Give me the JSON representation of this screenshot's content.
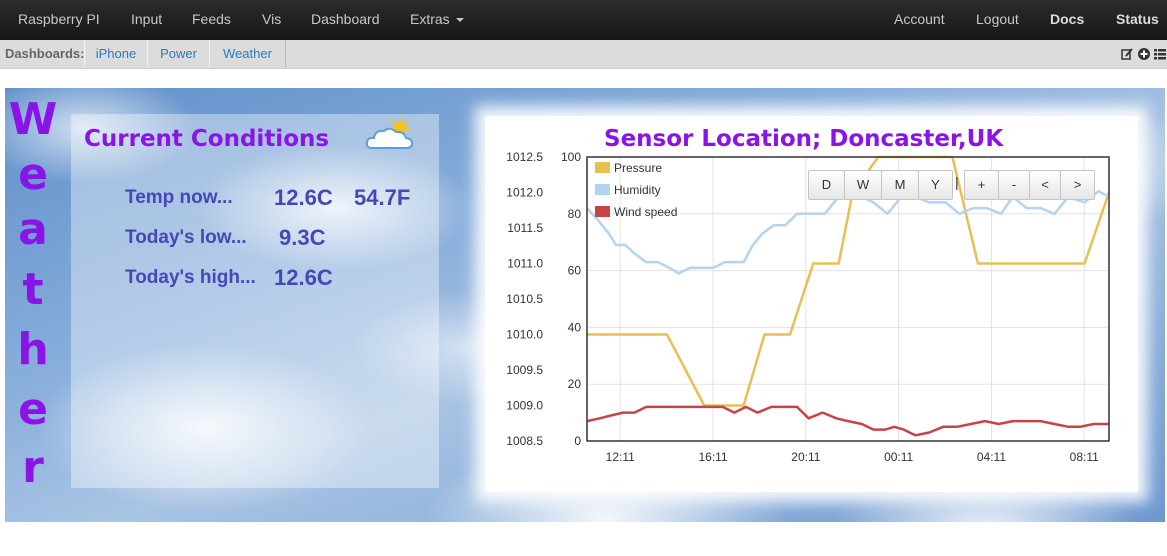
{
  "navbar": {
    "brand": "Raspberry PI",
    "left_items": [
      "Input",
      "Feeds",
      "Vis",
      "Dashboard",
      "Extras"
    ],
    "right_items": [
      "Account",
      "Logout",
      "Docs",
      "Status"
    ]
  },
  "dashboards": {
    "label": "Dashboards:",
    "tabs": [
      "iPhone",
      "Power",
      "Weather"
    ]
  },
  "weather_word": [
    "W",
    "e",
    "a",
    "t",
    "h",
    "e",
    "r"
  ],
  "current_conditions": {
    "title": "Current Conditions",
    "icon": "partly-cloudy-icon",
    "rows": [
      {
        "label": "Temp now...",
        "values": [
          "12.6C",
          "54.7F"
        ]
      },
      {
        "label": "Today's low...",
        "values": [
          "9.3C"
        ]
      },
      {
        "label": "Today's high...",
        "values": [
          "12.6C"
        ]
      }
    ]
  },
  "sensor": {
    "title": "Sensor Location; Doncaster,UK",
    "zoom_buttons": [
      "D",
      "W",
      "M",
      "Y",
      "+",
      "-",
      "<",
      ">"
    ],
    "separator": "|"
  },
  "colors": {
    "accent_purple": "#8a14e8",
    "text_blue": "#4747b8",
    "pressure": "#e8bf52",
    "humidity": "#b3d4ee",
    "wind": "#c84444"
  },
  "chart_data": {
    "type": "line",
    "x_ticks": [
      "12:11",
      "16:11",
      "20:11",
      "00:11",
      "04:11",
      "08:11"
    ],
    "x_range_hours": [
      10.75,
      33.25
    ],
    "left_axis": {
      "ticks": [
        "1012.5",
        "1012.0",
        "1011.5",
        "1011.0",
        "1010.5",
        "1010.0",
        "1009.5",
        "1009.0",
        "1008.5"
      ],
      "range": [
        1008.5,
        1012.5
      ]
    },
    "right_axis": {
      "ticks": [
        "100",
        "80",
        "60",
        "40",
        "20",
        "0"
      ],
      "range": [
        0,
        100
      ]
    },
    "grid": true,
    "legend_placement": "top-left",
    "series": [
      {
        "name": "Pressure",
        "axis": "left",
        "x": [
          10.75,
          12.5,
          13.4,
          14.2,
          15.8,
          16.3,
          17.0,
          17.5,
          18.4,
          19.5,
          20.5,
          21.1,
          21.6,
          22.2,
          23.3,
          24.2,
          25.4,
          26.5,
          27.6,
          28.5,
          29.7,
          30.9,
          32.2,
          33.25
        ],
        "values": [
          1010.0,
          1010.0,
          1010.0,
          1010.0,
          1009.0,
          1009.0,
          1009.0,
          1009.0,
          1010.0,
          1010.0,
          1011.0,
          1011.0,
          1011.0,
          1012.0,
          1012.5,
          1012.5,
          1012.5,
          1012.5,
          1011.0,
          1011.0,
          1011.0,
          1011.0,
          1011.0,
          1012.0
        ]
      },
      {
        "name": "Humidity",
        "axis": "right",
        "x": [
          10.75,
          11.2,
          11.7,
          12.0,
          12.4,
          12.8,
          13.3,
          13.8,
          14.3,
          14.7,
          15.2,
          15.7,
          16.2,
          16.7,
          17.1,
          17.5,
          17.9,
          18.3,
          18.8,
          19.3,
          19.8,
          20.4,
          21.0,
          21.6,
          22.1,
          22.6,
          23.1,
          23.7,
          24.3,
          24.9,
          25.5,
          26.2,
          26.8,
          27.4,
          28.0,
          28.6,
          29.1,
          29.7,
          30.3,
          30.9,
          31.5,
          32.2,
          32.8,
          33.25
        ],
        "values": [
          82,
          78,
          73,
          69,
          69,
          66,
          63,
          63,
          61,
          59,
          61,
          61,
          61,
          63,
          63,
          63,
          69,
          73,
          76,
          76,
          80,
          80,
          80,
          86,
          86,
          86,
          84,
          80,
          86,
          86,
          84,
          84,
          80,
          82,
          82,
          80,
          86,
          82,
          82,
          80,
          86,
          84,
          88,
          86
        ]
      },
      {
        "name": "Wind speed",
        "axis": "right",
        "x": [
          10.75,
          11.3,
          11.8,
          12.3,
          12.8,
          13.3,
          13.9,
          14.5,
          15.0,
          15.6,
          16.1,
          16.6,
          17.1,
          17.6,
          18.1,
          18.7,
          19.2,
          19.8,
          20.3,
          20.9,
          21.5,
          22.0,
          22.6,
          23.1,
          23.6,
          24.0,
          24.4,
          24.9,
          25.5,
          26.1,
          26.7,
          27.3,
          27.9,
          28.5,
          29.1,
          29.7,
          30.3,
          30.9,
          31.5,
          32.0,
          32.6,
          33.25
        ],
        "values": [
          7,
          8,
          9,
          10,
          10,
          12,
          12,
          12,
          12,
          12,
          12,
          12,
          10,
          12,
          10,
          12,
          12,
          12,
          8,
          10,
          8,
          7,
          6,
          4,
          4,
          5,
          4,
          2,
          3,
          5,
          5,
          6,
          7,
          6,
          7,
          7,
          7,
          6,
          5,
          5,
          6,
          6
        ]
      }
    ]
  }
}
